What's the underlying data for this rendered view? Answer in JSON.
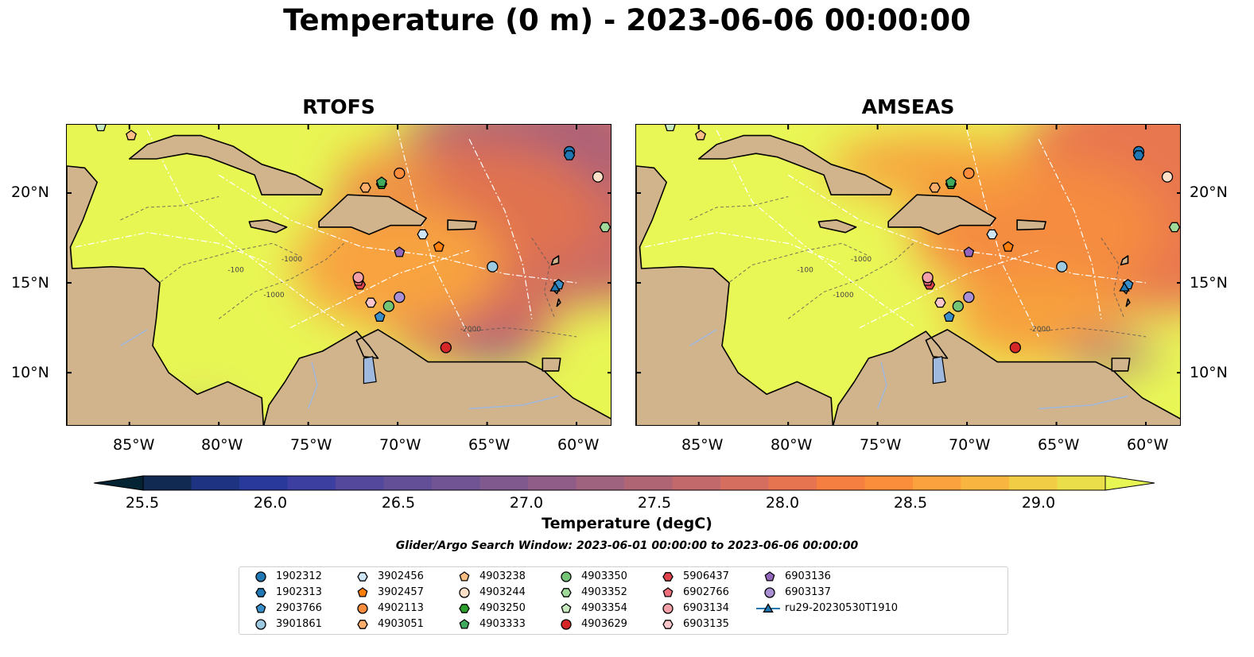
{
  "title": "Temperature (0 m) - 2023-06-06 00:00:00",
  "panels": [
    {
      "title": "RTOFS"
    },
    {
      "title": "AMSEAS"
    }
  ],
  "lon_ticks": [
    "85°W",
    "80°W",
    "75°W",
    "70°W",
    "65°W",
    "60°W"
  ],
  "lat_ticks": [
    "20°N",
    "15°N",
    "10°N"
  ],
  "map_extent": {
    "lon": [
      -88.5,
      -58
    ],
    "lat": [
      7,
      23.8
    ]
  },
  "contour_labels": [
    "-100",
    "-1000",
    "-2000"
  ],
  "colorbar": {
    "label": "Temperature (degC)",
    "ticks": [
      "25.5",
      "26.0",
      "26.5",
      "27.0",
      "27.5",
      "28.0",
      "28.5",
      "29.0"
    ],
    "range": [
      25.25,
      29.25
    ],
    "extend": "both",
    "colormap": "thermal",
    "colors": [
      "#042333",
      "#112a52",
      "#1e3482",
      "#28399b",
      "#3c3fa0",
      "#54489c",
      "#624f98",
      "#715494",
      "#80598e",
      "#8f5d88",
      "#9f627f",
      "#b06575",
      "#c26a6b",
      "#d56e5f",
      "#e67451",
      "#f47f41",
      "#fb8e3a",
      "#fba13d",
      "#f8b640",
      "#f1cc45",
      "#eadf4a",
      "#e8f654"
    ]
  },
  "search_window": "Glider/Argo Search Window: 2023-06-01 00:00:00 to 2023-06-06 00:00:00",
  "legend": [
    {
      "label": "1902312",
      "marker": "circle",
      "color": "#1f77b4"
    },
    {
      "label": "1902313",
      "marker": "hexagon",
      "color": "#1f77b4"
    },
    {
      "label": "2903766",
      "marker": "pentagon",
      "color": "#3a8fc8"
    },
    {
      "label": "3901861",
      "marker": "circle",
      "color": "#9ecae1"
    },
    {
      "label": "3902456",
      "marker": "hexagon",
      "color": "#cfe6f7"
    },
    {
      "label": "3902457",
      "marker": "pentagon",
      "color": "#ff7f0e"
    },
    {
      "label": "4902113",
      "marker": "circle",
      "color": "#fd8d3c"
    },
    {
      "label": "4903051",
      "marker": "hexagon",
      "color": "#fdae6b"
    },
    {
      "label": "4903238",
      "marker": "pentagon",
      "color": "#fdbe85"
    },
    {
      "label": "4903244",
      "marker": "circle",
      "color": "#fee0c8"
    },
    {
      "label": "4903250",
      "marker": "hexagon",
      "color": "#2ca02c"
    },
    {
      "label": "4903333",
      "marker": "pentagon",
      "color": "#41ab5d"
    },
    {
      "label": "4903350",
      "marker": "circle",
      "color": "#74c476"
    },
    {
      "label": "4903352",
      "marker": "hexagon",
      "color": "#a1d99b"
    },
    {
      "label": "4903354",
      "marker": "pentagon",
      "color": "#c7e9c0"
    },
    {
      "label": "4903629",
      "marker": "circle",
      "color": "#d62728"
    },
    {
      "label": "5906437",
      "marker": "hexagon",
      "color": "#e0434b"
    },
    {
      "label": "6902766",
      "marker": "pentagon",
      "color": "#ef6f7a"
    },
    {
      "label": "6903134",
      "marker": "circle",
      "color": "#f4a0a8"
    },
    {
      "label": "6903135",
      "marker": "hexagon",
      "color": "#f8c6cb"
    },
    {
      "label": "6903136",
      "marker": "pentagon",
      "color": "#9467bd"
    },
    {
      "label": "6903137",
      "marker": "circle",
      "color": "#a98fd4"
    },
    {
      "label": "ru29-20230530T1910",
      "marker": "triangle-line",
      "color": "#1f77b4"
    }
  ],
  "floats": [
    {
      "id": "1902312",
      "lon": -60.4,
      "lat": 22.3
    },
    {
      "id": "1902313",
      "lon": -60.4,
      "lat": 22.1
    },
    {
      "id": "2903766",
      "lon": -61.0,
      "lat": 14.9
    },
    {
      "id": "3901861",
      "lon": -64.7,
      "lat": 15.9
    },
    {
      "id": "3902456",
      "lon": -68.6,
      "lat": 17.7
    },
    {
      "id": "3902457",
      "lon": -67.7,
      "lat": 17.0
    },
    {
      "id": "4902113",
      "lon": -69.9,
      "lat": 21.1
    },
    {
      "id": "4903051",
      "lon": -71.8,
      "lat": 20.3
    },
    {
      "id": "4903238",
      "lon": -84.9,
      "lat": 23.2
    },
    {
      "id": "4903244",
      "lon": -58.8,
      "lat": 20.9
    },
    {
      "id": "4903250",
      "lon": -70.9,
      "lat": 20.5
    },
    {
      "id": "4903333",
      "lon": -70.9,
      "lat": 20.6
    },
    {
      "id": "4903350",
      "lon": -70.5,
      "lat": 13.7
    },
    {
      "id": "4903352",
      "lon": -58.4,
      "lat": 18.1
    },
    {
      "id": "4903354",
      "lon": -86.6,
      "lat": 23.7
    },
    {
      "id": "4903629",
      "lon": -67.3,
      "lat": 11.4
    },
    {
      "id": "5906437",
      "lon": -72.1,
      "lat": 14.9
    },
    {
      "id": "6902766",
      "lon": -72.2,
      "lat": 15.1
    },
    {
      "id": "6903134",
      "lon": -72.2,
      "lat": 15.3
    },
    {
      "id": "6903135",
      "lon": -71.5,
      "lat": 13.9
    },
    {
      "id": "6903136",
      "lon": -69.9,
      "lat": 16.7
    },
    {
      "id": "6903137",
      "lon": -69.9,
      "lat": 14.2
    },
    {
      "id": "2903766b",
      "lon": -71.0,
      "lat": 13.1
    },
    {
      "id": "ru29-20230530T1910",
      "lon": -61.2,
      "lat": 14.7
    }
  ]
}
